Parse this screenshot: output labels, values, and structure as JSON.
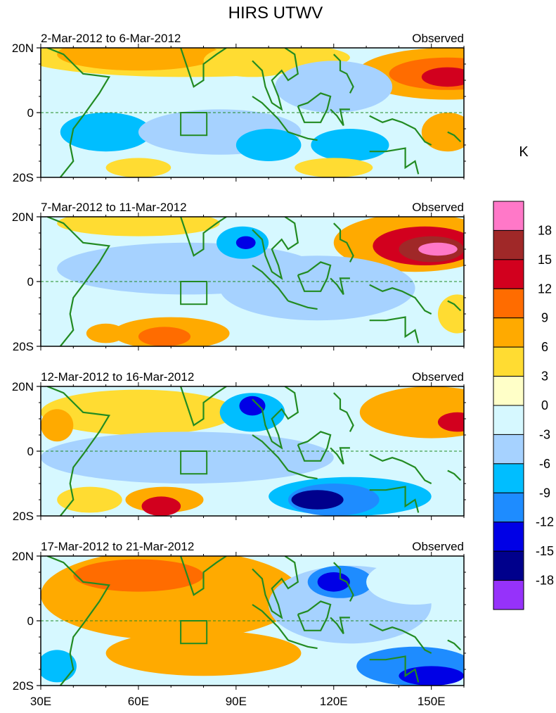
{
  "chart_data": {
    "type": "heatmap",
    "title": "HIRS UTWV",
    "colorbar": {
      "unit": "K",
      "tick_labels": [
        "18",
        "15",
        "12",
        "9",
        "6",
        "3",
        "0",
        "-3",
        "-6",
        "-9",
        "-12",
        "-15",
        "-18"
      ],
      "colors": [
        "#ff78c8",
        "#a02828",
        "#d2001e",
        "#ff6c00",
        "#ffaa00",
        "#ffdc32",
        "#ffffc8",
        "#d6f8ff",
        "#a6d2ff",
        "#00beff",
        "#1e8cff",
        "#0000e6",
        "#00008c",
        "#9632fa"
      ]
    },
    "xaxis": {
      "tick_labels": [
        "30E",
        "60E",
        "90E",
        "120E",
        "150E"
      ],
      "range": [
        30,
        160
      ]
    },
    "yaxis": {
      "tick_labels": [
        "20N",
        "0",
        "20S"
      ],
      "range": [
        -20,
        20
      ]
    },
    "panels": [
      {
        "left_title": "2-Mar-2012 to 6-Mar-2012",
        "right_title": "Observed",
        "blobs": [
          {
            "lon": 155,
            "lat": 12,
            "rlon": 28,
            "rlat": 8,
            "v": 7
          },
          {
            "lon": 155,
            "lat": 12,
            "rlon": 18,
            "rlat": 5,
            "v": 10
          },
          {
            "lon": 155,
            "lat": 11,
            "rlon": 8,
            "rlat": 3,
            "v": 14
          },
          {
            "lon": 75,
            "lat": 17,
            "rlon": 50,
            "rlat": 6,
            "v": 4
          },
          {
            "lon": 60,
            "lat": 18,
            "rlon": 25,
            "rlat": 5,
            "v": 7
          },
          {
            "lon": 95,
            "lat": 16,
            "rlon": 15,
            "rlat": 5,
            "v": 5
          },
          {
            "lon": 50,
            "lat": -6,
            "rlon": 14,
            "rlat": 6,
            "v": -7
          },
          {
            "lon": 85,
            "lat": -6,
            "rlon": 25,
            "rlat": 7,
            "v": -5
          },
          {
            "lon": 100,
            "lat": -10,
            "rlon": 10,
            "rlat": 5,
            "v": -7
          },
          {
            "lon": 125,
            "lat": -10,
            "rlon": 12,
            "rlat": 5,
            "v": -7
          },
          {
            "lon": 120,
            "lat": 8,
            "rlon": 18,
            "rlat": 8,
            "v": -4
          },
          {
            "lon": 155,
            "lat": -6,
            "rlon": 8,
            "rlat": 6,
            "v": 6
          },
          {
            "lon": 60,
            "lat": -17,
            "rlon": 10,
            "rlat": 3,
            "v": 4
          },
          {
            "lon": 120,
            "lat": -17,
            "rlon": 12,
            "rlat": 3,
            "v": 4
          }
        ]
      },
      {
        "left_title": "7-Mar-2012 to 11-Mar-2012",
        "right_title": "Observed",
        "blobs": [
          {
            "lon": 145,
            "lat": 12,
            "rlon": 25,
            "rlat": 9,
            "v": 8
          },
          {
            "lon": 148,
            "lat": 11,
            "rlon": 16,
            "rlat": 6,
            "v": 13
          },
          {
            "lon": 150,
            "lat": 10,
            "rlon": 10,
            "rlat": 4,
            "v": 16
          },
          {
            "lon": 152,
            "lat": 10,
            "rlon": 6,
            "rlat": 2,
            "v": 19
          },
          {
            "lon": 60,
            "lat": 18,
            "rlon": 25,
            "rlat": 4,
            "v": 5
          },
          {
            "lon": 75,
            "lat": 4,
            "rlon": 40,
            "rlat": 8,
            "v": -6
          },
          {
            "lon": 92,
            "lat": 12,
            "rlon": 8,
            "rlat": 5,
            "v": -9
          },
          {
            "lon": 93,
            "lat": 12,
            "rlon": 3,
            "rlat": 2,
            "v": -13
          },
          {
            "lon": 70,
            "lat": -16,
            "rlon": 18,
            "rlat": 5,
            "v": 6
          },
          {
            "lon": 68,
            "lat": -17,
            "rlon": 8,
            "rlat": 3,
            "v": 9
          },
          {
            "lon": 50,
            "lat": -16,
            "rlon": 6,
            "rlat": 3,
            "v": 6
          },
          {
            "lon": 115,
            "lat": -2,
            "rlon": 30,
            "rlat": 10,
            "v": -4
          },
          {
            "lon": 158,
            "lat": -10,
            "rlon": 6,
            "rlat": 6,
            "v": 4
          }
        ]
      },
      {
        "left_title": "12-Mar-2012 to 16-Mar-2012",
        "right_title": "Observed",
        "blobs": [
          {
            "lon": 150,
            "lat": 12,
            "rlon": 22,
            "rlat": 8,
            "v": 7
          },
          {
            "lon": 158,
            "lat": 9,
            "rlon": 6,
            "rlat": 3,
            "v": 12
          },
          {
            "lon": 60,
            "lat": 12,
            "rlon": 30,
            "rlat": 7,
            "v": 5
          },
          {
            "lon": 35,
            "lat": 8,
            "rlon": 5,
            "rlat": 5,
            "v": 8
          },
          {
            "lon": 75,
            "lat": -2,
            "rlon": 45,
            "rlat": 8,
            "v": -6
          },
          {
            "lon": 95,
            "lat": 12,
            "rlon": 10,
            "rlat": 6,
            "v": -9
          },
          {
            "lon": 95,
            "lat": 14,
            "rlon": 4,
            "rlat": 3,
            "v": -13
          },
          {
            "lon": 125,
            "lat": -14,
            "rlon": 25,
            "rlat": 6,
            "v": -9
          },
          {
            "lon": 120,
            "lat": -15,
            "rlon": 14,
            "rlat": 5,
            "v": -12
          },
          {
            "lon": 115,
            "lat": -15,
            "rlon": 8,
            "rlat": 3,
            "v": -16
          },
          {
            "lon": 68,
            "lat": -15,
            "rlon": 12,
            "rlat": 4,
            "v": 8
          },
          {
            "lon": 67,
            "lat": -17,
            "rlon": 6,
            "rlat": 3,
            "v": 12
          },
          {
            "lon": 45,
            "lat": -15,
            "rlon": 10,
            "rlat": 4,
            "v": 4
          }
        ]
      },
      {
        "left_title": "17-Mar-2012 to 21-Mar-2012",
        "right_title": "Observed",
        "blobs": [
          {
            "lon": 70,
            "lat": 8,
            "rlon": 40,
            "rlat": 14,
            "v": 7
          },
          {
            "lon": 60,
            "lat": 14,
            "rlon": 20,
            "rlat": 5,
            "v": 10
          },
          {
            "lon": 80,
            "lat": -10,
            "rlon": 30,
            "rlat": 7,
            "v": 6
          },
          {
            "lon": 125,
            "lat": 5,
            "rlon": 25,
            "rlat": 12,
            "v": -6
          },
          {
            "lon": 122,
            "lat": 12,
            "rlon": 10,
            "rlat": 5,
            "v": -11
          },
          {
            "lon": 120,
            "lat": 12,
            "rlon": 5,
            "rlat": 3,
            "v": -14
          },
          {
            "lon": 145,
            "lat": -14,
            "rlon": 18,
            "rlat": 6,
            "v": -10
          },
          {
            "lon": 150,
            "lat": -17,
            "rlon": 10,
            "rlat": 3,
            "v": -13
          },
          {
            "lon": 35,
            "lat": -14,
            "rlon": 6,
            "rlat": 5,
            "v": -7
          },
          {
            "lon": 145,
            "lat": 12,
            "rlon": 15,
            "rlat": 7,
            "v": -3
          }
        ]
      }
    ]
  }
}
